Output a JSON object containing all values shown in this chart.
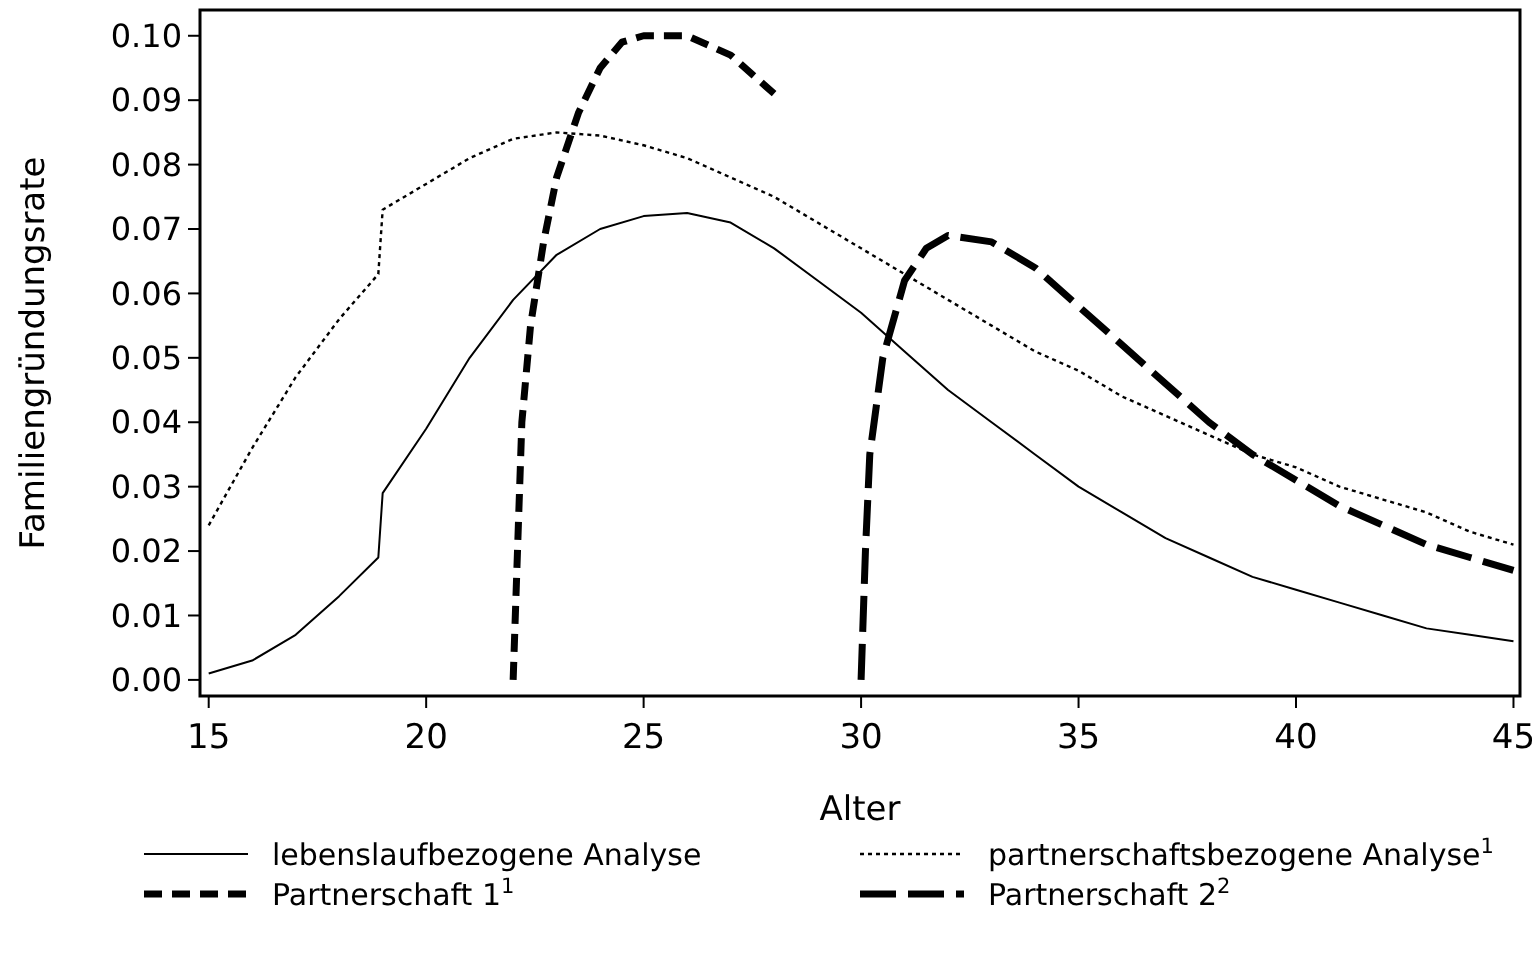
{
  "chart_data": {
    "type": "line",
    "xlabel": "Alter",
    "ylabel": "Familiengründungsrate",
    "xlim": [
      14.8,
      45.15
    ],
    "ylim": [
      -0.0025,
      0.104
    ],
    "xticks": [
      15,
      20,
      25,
      30,
      35,
      40,
      45
    ],
    "yticks": [
      {
        "value": 0,
        "label": "0.00"
      },
      {
        "value": 0.01,
        "label": "0.01"
      },
      {
        "value": 0.02,
        "label": "0.02"
      },
      {
        "value": 0.03,
        "label": "0.03"
      },
      {
        "value": 0.04,
        "label": "0.04"
      },
      {
        "value": 0.05,
        "label": "0.05"
      },
      {
        "value": 0.06,
        "label": "0.06"
      },
      {
        "value": 0.07,
        "label": "0.07"
      },
      {
        "value": 0.08,
        "label": "0.08"
      },
      {
        "value": 0.09,
        "label": "0.09"
      },
      {
        "value": 0.1,
        "label": "0.10"
      }
    ],
    "grid": false,
    "legend": "bottom",
    "marker": "none",
    "series": [
      {
        "name": "lebenslaufbezogene Analyse",
        "color": "#000000",
        "line_style": "solid",
        "x": [
          15,
          16,
          17,
          18,
          18.9,
          19,
          20,
          21,
          22,
          23,
          24,
          25,
          26,
          27,
          28,
          29,
          30,
          31,
          32,
          33,
          34,
          35,
          36,
          37,
          38,
          39,
          40,
          41,
          42,
          43,
          44,
          45
        ],
        "values": [
          0.001,
          0.003,
          0.007,
          0.013,
          0.019,
          0.029,
          0.039,
          0.05,
          0.059,
          0.066,
          0.07,
          0.072,
          0.0725,
          0.071,
          0.067,
          0.062,
          0.057,
          0.051,
          0.045,
          0.04,
          0.035,
          0.03,
          0.026,
          0.022,
          0.019,
          0.016,
          0.014,
          0.012,
          0.01,
          0.008,
          0.007,
          0.006
        ]
      },
      {
        "name": "partnerschaftsbezogene Analyse$^{1}$",
        "color": "#000000",
        "line_style": "dotted",
        "x": [
          15,
          16,
          17,
          18,
          18.9,
          19,
          20,
          21,
          22,
          23,
          24,
          25,
          26,
          27,
          28,
          29,
          30,
          31,
          32,
          33,
          34,
          35,
          36,
          37,
          38,
          39,
          40,
          41,
          42,
          43,
          44,
          45
        ],
        "values": [
          0.024,
          0.036,
          0.047,
          0.056,
          0.063,
          0.073,
          0.077,
          0.081,
          0.084,
          0.085,
          0.0845,
          0.083,
          0.081,
          0.078,
          0.075,
          0.071,
          0.067,
          0.063,
          0.059,
          0.055,
          0.051,
          0.048,
          0.044,
          0.041,
          0.038,
          0.035,
          0.033,
          0.03,
          0.028,
          0.026,
          0.023,
          0.021
        ]
      },
      {
        "name": "Partnerschaft 1$^{1}$",
        "color": "#000000",
        "line_style": "dashed",
        "x": [
          22,
          22.1,
          22.2,
          22.4,
          22.7,
          23,
          23.5,
          24,
          24.5,
          25,
          26,
          27,
          28
        ],
        "values": [
          0.0,
          0.02,
          0.04,
          0.055,
          0.068,
          0.078,
          0.088,
          0.095,
          0.099,
          0.1,
          0.1,
          0.097,
          0.091
        ]
      },
      {
        "name": "Partnerschaft 2$^{2}$",
        "color": "#000000",
        "line_style": "dashed",
        "x": [
          30,
          30.1,
          30.2,
          30.5,
          31,
          31.5,
          32,
          33,
          34,
          35,
          36,
          37,
          38,
          39,
          40,
          41,
          42,
          43,
          44,
          45
        ],
        "values": [
          0.0,
          0.02,
          0.035,
          0.05,
          0.062,
          0.067,
          0.069,
          0.068,
          0.064,
          0.058,
          0.052,
          0.046,
          0.04,
          0.035,
          0.031,
          0.027,
          0.024,
          0.021,
          0.019,
          0.017
        ]
      }
    ]
  }
}
